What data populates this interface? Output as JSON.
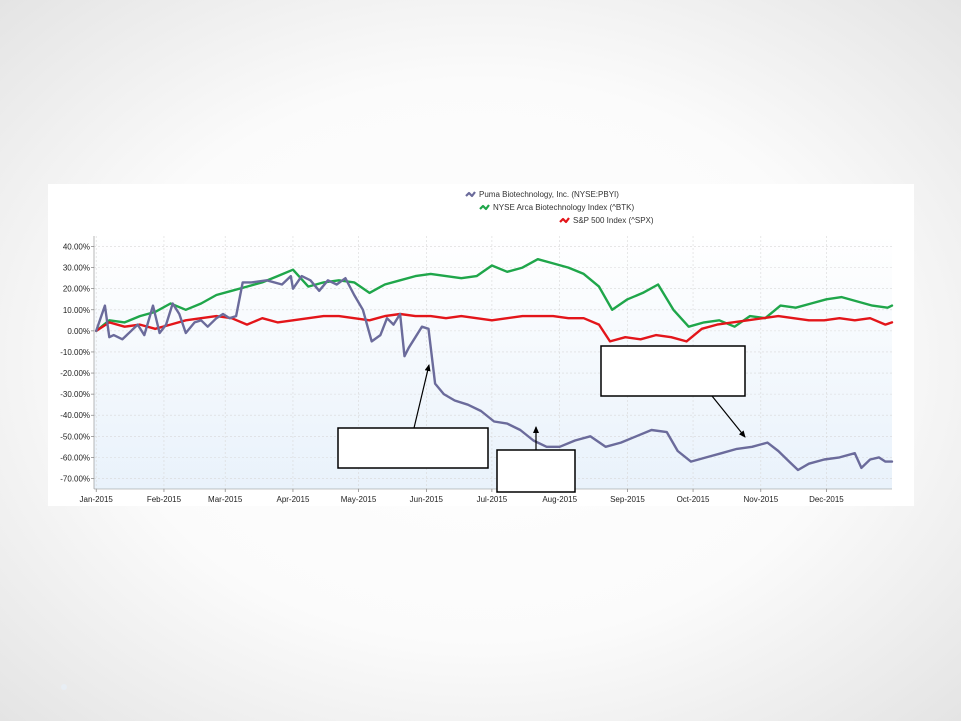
{
  "chart_data": {
    "type": "line",
    "yunit": "%",
    "ylim": [
      -75,
      45
    ],
    "yticks": [
      40,
      30,
      20,
      10,
      0,
      -10,
      -20,
      -30,
      -40,
      -50,
      -60,
      -70
    ],
    "ytick_labels": [
      "40.00%",
      "30.00%",
      "20.00%",
      "10.00%",
      "0.00%",
      "-10.00%",
      "-20.00%",
      "-30.00%",
      "-40.00%",
      "-50.00%",
      "-60.00%",
      "-70.00%"
    ],
    "xlim": [
      "2014-12-31",
      "2015-12-31"
    ],
    "x_ticks": [
      {
        "date": "2015-01-01",
        "label": "Jan-2015"
      },
      {
        "date": "2015-02-01",
        "label": "Feb-2015"
      },
      {
        "date": "2015-03-01",
        "label": "Mar-2015"
      },
      {
        "date": "2015-04-01",
        "label": "Apr-2015"
      },
      {
        "date": "2015-05-01",
        "label": "May-2015"
      },
      {
        "date": "2015-06-01",
        "label": "Jun-2015"
      },
      {
        "date": "2015-07-01",
        "label": "Jul-2015"
      },
      {
        "date": "2015-08-01",
        "label": "Aug-2015"
      },
      {
        "date": "2015-09-01",
        "label": "Sep-2015"
      },
      {
        "date": "2015-10-01",
        "label": "Oct-2015"
      },
      {
        "date": "2015-11-01",
        "label": "Nov-2015"
      },
      {
        "date": "2015-12-01",
        "label": "Dec-2015"
      }
    ],
    "grid": true,
    "legend_position": "top-center",
    "series": [
      {
        "name": "Puma Biotechnology, Inc. (NYSE:PBYI)",
        "color": "#6b6b9b",
        "x": [
          "2015-01-01",
          "2015-01-05",
          "2015-01-07",
          "2015-01-09",
          "2015-01-13",
          "2015-01-20",
          "2015-01-23",
          "2015-01-27",
          "2015-01-30",
          "2015-02-02",
          "2015-02-05",
          "2015-02-08",
          "2015-02-11",
          "2015-02-15",
          "2015-02-18",
          "2015-02-21",
          "2015-02-25",
          "2015-02-28",
          "2015-03-03",
          "2015-03-06",
          "2015-03-09",
          "2015-03-13",
          "2015-03-20",
          "2015-03-27",
          "2015-03-31",
          "2015-04-01",
          "2015-04-05",
          "2015-04-09",
          "2015-04-13",
          "2015-04-17",
          "2015-04-21",
          "2015-04-25",
          "2015-04-29",
          "2015-05-03",
          "2015-05-07",
          "2015-05-11",
          "2015-05-14",
          "2015-05-17",
          "2015-05-20",
          "2015-05-22",
          "2015-05-24",
          "2015-05-27",
          "2015-05-30",
          "2015-06-02",
          "2015-06-05",
          "2015-06-09",
          "2015-06-14",
          "2015-06-20",
          "2015-06-26",
          "2015-07-02",
          "2015-07-08",
          "2015-07-14",
          "2015-07-20",
          "2015-07-26",
          "2015-08-01",
          "2015-08-08",
          "2015-08-15",
          "2015-08-22",
          "2015-08-29",
          "2015-09-05",
          "2015-09-12",
          "2015-09-19",
          "2015-09-24",
          "2015-09-30",
          "2015-10-07",
          "2015-10-14",
          "2015-10-21",
          "2015-10-28",
          "2015-11-04",
          "2015-11-09",
          "2015-11-14",
          "2015-11-18",
          "2015-11-23",
          "2015-11-30",
          "2015-12-07",
          "2015-12-14",
          "2015-12-17",
          "2015-12-21",
          "2015-12-25",
          "2015-12-28",
          "2015-12-31"
        ],
        "values": [
          0,
          12,
          -3,
          -2,
          -4,
          3,
          -2,
          12,
          -1,
          3,
          13,
          8,
          -1,
          4,
          5,
          2,
          6,
          8,
          6,
          7,
          23,
          23,
          24,
          22,
          26,
          20,
          26,
          24,
          19,
          24,
          22,
          25,
          17,
          10,
          -5,
          -2,
          6,
          3,
          8,
          -12,
          -8,
          -3,
          2,
          1,
          -25,
          -30,
          -33,
          -35,
          -38,
          -43,
          -44,
          -47,
          -52,
          -55,
          -55,
          -52,
          -50,
          -55,
          -53,
          -50,
          -47,
          -48,
          -57,
          -62,
          -60,
          -58,
          -56,
          -55,
          -53,
          -57,
          -62,
          -66,
          -63,
          -61,
          -60,
          -58,
          -65,
          -61,
          -60,
          -62,
          -62
        ]
      },
      {
        "name": "NYSE Arca Biotechnology Index (^BTK)",
        "color": "#1fa64a",
        "x": [
          "2015-01-01",
          "2015-01-07",
          "2015-01-14",
          "2015-01-21",
          "2015-01-28",
          "2015-02-04",
          "2015-02-11",
          "2015-02-18",
          "2015-02-25",
          "2015-03-04",
          "2015-03-11",
          "2015-03-18",
          "2015-03-25",
          "2015-04-01",
          "2015-04-08",
          "2015-04-15",
          "2015-04-22",
          "2015-04-29",
          "2015-05-06",
          "2015-05-13",
          "2015-05-20",
          "2015-05-27",
          "2015-06-03",
          "2015-06-10",
          "2015-06-17",
          "2015-06-24",
          "2015-07-01",
          "2015-07-08",
          "2015-07-15",
          "2015-07-22",
          "2015-07-29",
          "2015-08-05",
          "2015-08-12",
          "2015-08-19",
          "2015-08-25",
          "2015-09-01",
          "2015-09-08",
          "2015-09-15",
          "2015-09-22",
          "2015-09-29",
          "2015-10-06",
          "2015-10-13",
          "2015-10-20",
          "2015-10-27",
          "2015-11-03",
          "2015-11-10",
          "2015-11-17",
          "2015-11-24",
          "2015-12-01",
          "2015-12-08",
          "2015-12-15",
          "2015-12-22",
          "2015-12-29",
          "2015-12-31"
        ],
        "values": [
          0,
          5,
          4,
          7,
          9,
          13,
          10,
          13,
          17,
          19,
          21,
          23,
          26,
          29,
          21,
          23,
          24,
          23,
          18,
          22,
          24,
          26,
          27,
          26,
          25,
          26,
          31,
          28,
          30,
          34,
          32,
          30,
          27,
          21,
          10,
          15,
          18,
          22,
          10,
          2,
          4,
          5,
          2,
          7,
          6,
          12,
          11,
          13,
          15,
          16,
          14,
          12,
          11,
          12
        ]
      },
      {
        "name": "S&P 500 Index (^SPX)",
        "color": "#e3151a",
        "x": [
          "2015-01-01",
          "2015-01-07",
          "2015-01-14",
          "2015-01-21",
          "2015-01-28",
          "2015-02-04",
          "2015-02-11",
          "2015-02-18",
          "2015-02-25",
          "2015-03-04",
          "2015-03-11",
          "2015-03-18",
          "2015-03-25",
          "2015-04-01",
          "2015-04-08",
          "2015-04-15",
          "2015-04-22",
          "2015-04-29",
          "2015-05-06",
          "2015-05-13",
          "2015-05-20",
          "2015-05-27",
          "2015-06-03",
          "2015-06-10",
          "2015-06-17",
          "2015-06-24",
          "2015-07-01",
          "2015-07-08",
          "2015-07-15",
          "2015-07-22",
          "2015-07-29",
          "2015-08-05",
          "2015-08-12",
          "2015-08-19",
          "2015-08-24",
          "2015-08-31",
          "2015-09-07",
          "2015-09-14",
          "2015-09-21",
          "2015-09-28",
          "2015-10-05",
          "2015-10-12",
          "2015-10-19",
          "2015-10-26",
          "2015-11-02",
          "2015-11-09",
          "2015-11-16",
          "2015-11-23",
          "2015-11-30",
          "2015-12-07",
          "2015-12-14",
          "2015-12-21",
          "2015-12-28",
          "2015-12-31"
        ],
        "values": [
          0,
          4,
          2,
          3,
          1,
          3,
          5,
          6,
          7,
          6,
          3,
          6,
          4,
          5,
          6,
          7,
          7,
          6,
          5,
          7,
          8,
          7,
          7,
          6,
          7,
          6,
          5,
          6,
          7,
          7,
          7,
          6,
          6,
          3,
          -5,
          -3,
          -4,
          -2,
          -3,
          -5,
          1,
          3,
          4,
          5,
          6,
          7,
          6,
          5,
          5,
          6,
          5,
          6,
          3,
          4
        ]
      }
    ]
  },
  "callouts": [
    {
      "label": ""
    },
    {
      "label": ""
    },
    {
      "label": ""
    }
  ]
}
